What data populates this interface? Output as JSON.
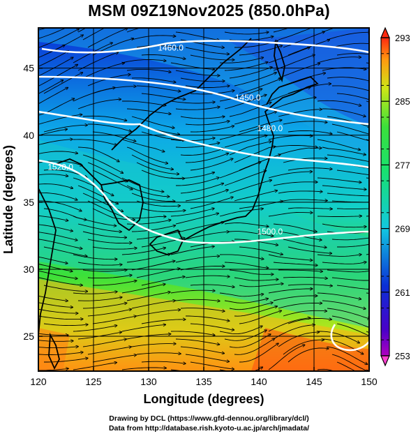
{
  "title": "MSM 09Z19Nov2025 (850.0hPa)",
  "map": {
    "xlabel": "Longitude (degrees)",
    "ylabel": "Latitude  (degrees)",
    "lon_range": [
      120,
      150
    ],
    "lat_range": [
      22.4,
      48
    ],
    "lon_ticks": [
      "120",
      "125",
      "130",
      "135",
      "140",
      "145",
      "150"
    ],
    "lat_ticks": [
      "25",
      "30",
      "35",
      "40",
      "45"
    ],
    "lon_tick_values": [
      120,
      125,
      130,
      135,
      140,
      145,
      150
    ],
    "lat_tick_values": [
      25,
      30,
      35,
      40,
      45
    ],
    "grid": true,
    "field": "temperature (shaded)",
    "streamlines": "wind",
    "contours": [
      {
        "label": "1480.0",
        "lon": 141.0,
        "lat": 40.3
      },
      {
        "label": "1460.0",
        "lon": 132.0,
        "lat": 46.3
      },
      {
        "label": "1450.0",
        "lon": 139.0,
        "lat": 42.6
      },
      {
        "label": "1500.0",
        "lon": 141.0,
        "lat": 32.6
      },
      {
        "label": "1520.0",
        "lon": 122.0,
        "lat": 37.4
      }
    ]
  },
  "colorbar": {
    "min": 253,
    "max": 293,
    "tick_labels": [
      "293",
      "285",
      "277",
      "269",
      "261",
      "253"
    ],
    "tick_values": [
      293,
      285,
      277,
      269,
      261,
      253
    ]
  },
  "credits": {
    "line1": "Drawing by DCL (https://www.gfd-dennou.org/library/dcl/)",
    "line2": "Data from http://database.rish.kyoto-u.ac.jp/arch/jmadata/"
  }
}
